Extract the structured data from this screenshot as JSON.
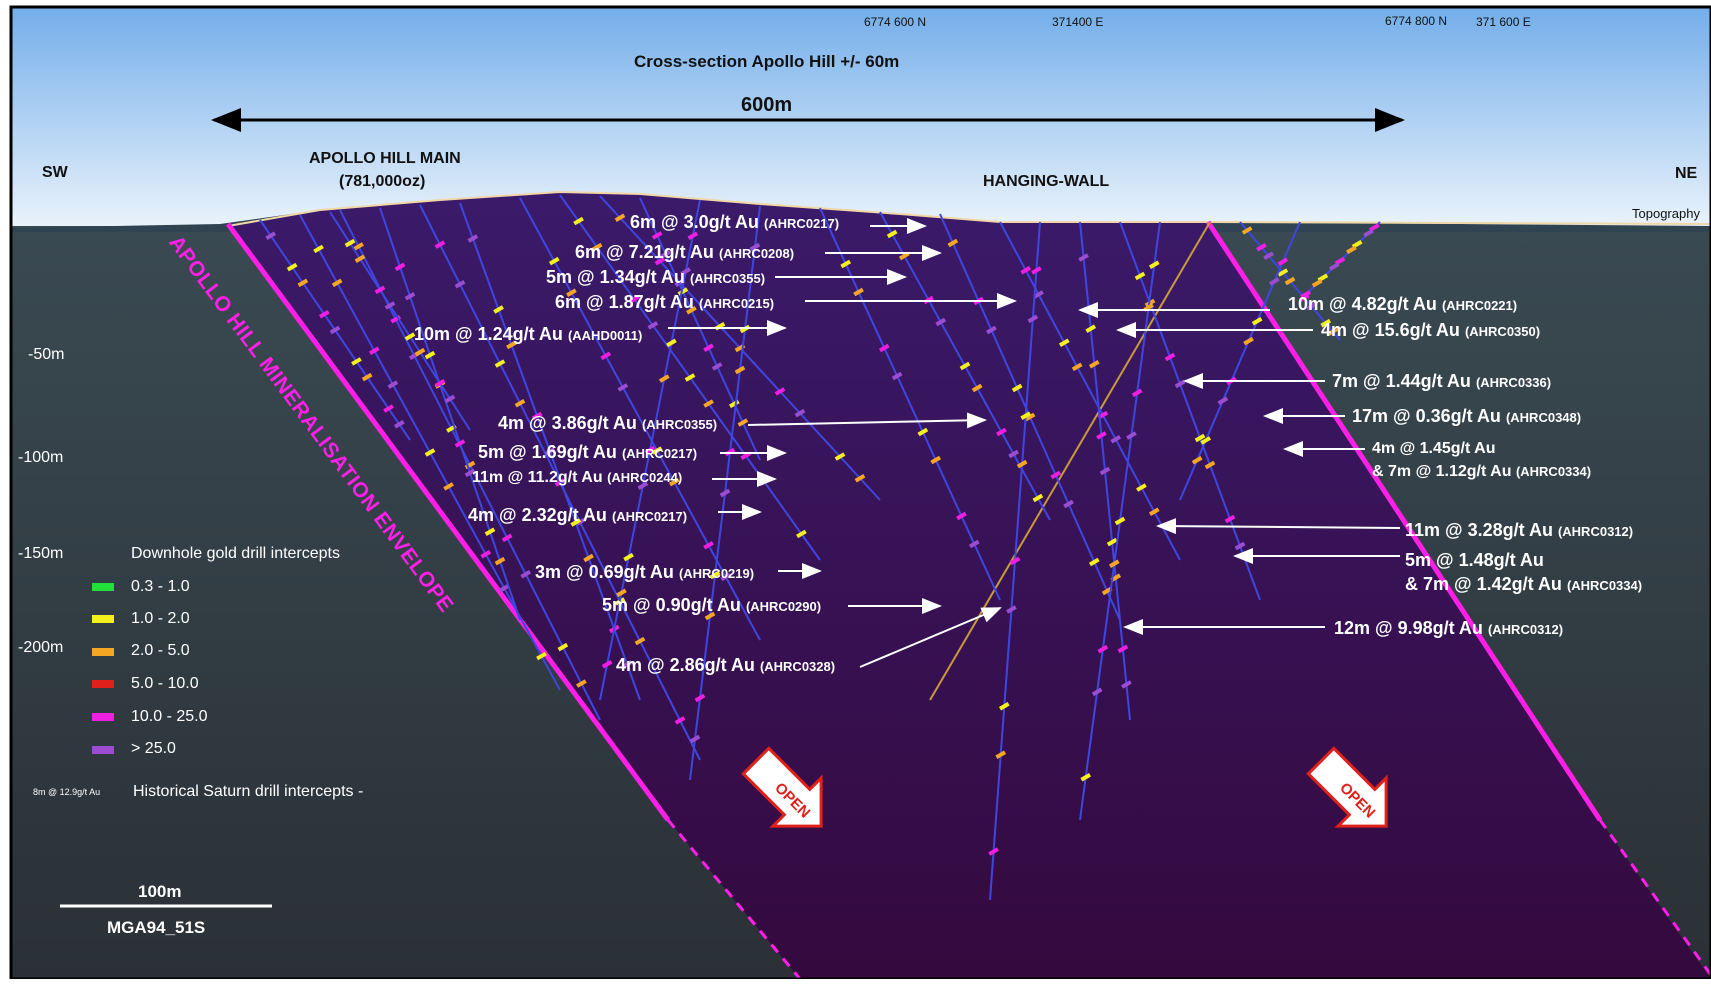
{
  "header": {
    "coord_left_n": "6774 600 N",
    "coord_mid_e": "371400 E",
    "coord_right_n": "6774 800 N",
    "coord_right_e": "371 600 E",
    "title": "Cross-section Apollo Hill +/- 60m",
    "width_label": "600m"
  },
  "section": {
    "sw": "SW",
    "ne": "NE",
    "main_zone": "APOLLO HILL MAIN",
    "main_zone_oz": "(781,000oz)",
    "hanging_wall": "HANGING-WALL",
    "topography": "Topography",
    "envelope": "APOLLO HILL MINERALISATION ENVELOPE",
    "open_left": "OPEN",
    "open_right": "OPEN"
  },
  "depths": [
    "-50m",
    "-100m",
    "-150m",
    "-200m"
  ],
  "intercepts_left": [
    {
      "main": "6m  @ 3.0g/t Au",
      "hole": "(AHRC0217)"
    },
    {
      "main": "6m  @ 7.21g/t Au",
      "hole": "(AHRC0208)"
    },
    {
      "main": "5m @ 1.34g/t Au",
      "hole": "(AHRC0355)"
    },
    {
      "main": "6m @ 1.87g/t Au",
      "hole": "(AHRC0215)"
    },
    {
      "main": "10m @ 1.24g/t Au",
      "hole": "(AAHD0011)"
    },
    {
      "main": "4m @ 3.86g/t Au",
      "hole": "(AHRC0355)"
    },
    {
      "main": "5m @ 1.69g/t Au",
      "hole": "(AHRC0217)"
    },
    {
      "main": "11m @ 11.2g/t Au",
      "hole": "(AHRC0244)"
    },
    {
      "main": "4m @ 2.32g/t Au",
      "hole": "(AHRC0217)"
    },
    {
      "main": "3m @ 0.69g/t Au",
      "hole": "(AHRC0219)"
    },
    {
      "main": "5m  @ 0.90g/t Au",
      "hole": "(AHRC0290)"
    },
    {
      "main": "4m @ 2.86g/t Au",
      "hole": "(AHRC0328)"
    }
  ],
  "intercepts_right": [
    {
      "main": "10m @ 4.82g/t Au",
      "hole": "(AHRC0221)"
    },
    {
      "main": "4m @ 15.6g/t Au",
      "hole": "(AHRC0350)"
    },
    {
      "main": "7m @ 1.44g/t Au",
      "hole": "(AHRC0336)"
    },
    {
      "main": "17m @ 0.36g/t Au",
      "hole": "(AHRC0348)"
    },
    {
      "main": "4m @ 1.45g/t Au",
      "hole": ""
    },
    {
      "main": "& 7m @ 1.12g/t Au",
      "hole": "(AHRC0334)"
    },
    {
      "main": "11m  @ 3.28g/t Au",
      "hole": "(AHRC0312)"
    },
    {
      "main": "5m @ 1.48g/t Au",
      "hole": ""
    },
    {
      "main": "& 7m @ 1.42g/t Au",
      "hole": "(AHRC0334)"
    },
    {
      "main": "12m  @ 9.98g/t Au",
      "hole": "(AHRC0312)"
    }
  ],
  "legend": {
    "title": "Downhole gold drill intercepts",
    "items": [
      {
        "label": "0.3 - 1.0",
        "color": "#22e03a"
      },
      {
        "label": "1.0 - 2.0",
        "color": "#f4f01c"
      },
      {
        "label": "2.0 - 5.0",
        "color": "#f5a623"
      },
      {
        "label": "5.0 - 10.0",
        "color": "#e0201a"
      },
      {
        "label": "10.0 - 25.0",
        "color": "#f01ee0"
      },
      {
        "label": "> 25.0",
        "color": "#9b4dd1"
      }
    ],
    "historical_sample": "8m @ 12.9g/t Au",
    "historical_label": "Historical Saturn drill intercepts -"
  },
  "scale": {
    "length": "100m",
    "datum": "MGA94_51S"
  },
  "colors": {
    "envelope": "#ff1fe6",
    "section_fill": "#3c1553",
    "ground": "#2f3a42",
    "sky_top": "#7ab4ee"
  }
}
